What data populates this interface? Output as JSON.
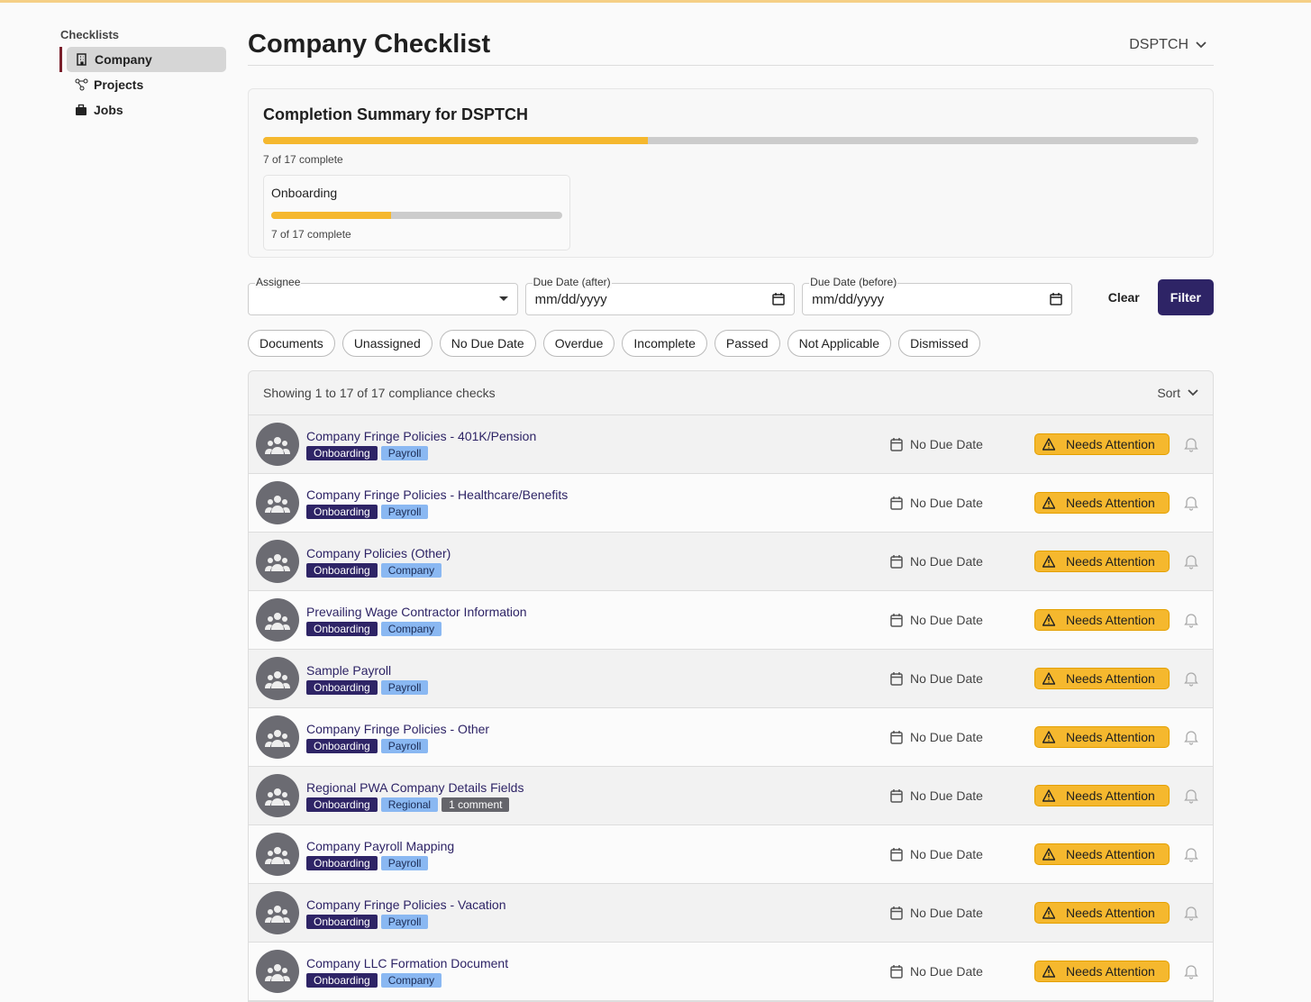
{
  "sidebar": {
    "heading": "Checklists",
    "items": [
      "Company",
      "Projects",
      "Jobs"
    ]
  },
  "header": {
    "title": "Company Checklist",
    "org": "DSPTCH"
  },
  "summary": {
    "title": "Completion Summary for DSPTCH",
    "completed": 7,
    "total": 17,
    "text": "7 of 17 complete",
    "groups": [
      {
        "name": "Onboarding",
        "completed": 7,
        "total": 17,
        "text": "7 of 17 complete"
      }
    ]
  },
  "filters": {
    "fields": [
      {
        "label": "Assignee",
        "placeholder": null
      },
      {
        "label": "Due Date (after)",
        "placeholder": "mm/dd/yyyy"
      },
      {
        "label": "Due Date (before)",
        "placeholder": "mm/dd/yyyy"
      }
    ],
    "clear": "Clear",
    "submit": "Filter",
    "chips": [
      "Documents",
      "Unassigned",
      "No Due Date",
      "Overdue",
      "Incomplete",
      "Passed",
      "Not Applicable",
      "Dismissed"
    ]
  },
  "list": {
    "showing": "Showing 1 to 17 of 17 compliance checks",
    "sort": "Sort",
    "rows": [
      {
        "title": "Company Fringe Policies - 401K/Pension",
        "tags": [
          "Onboarding",
          "Payroll"
        ],
        "due": "No Due Date",
        "status": "Needs Attention"
      },
      {
        "title": "Company Fringe Policies - Healthcare/Benefits",
        "tags": [
          "Onboarding",
          "Payroll"
        ],
        "due": "No Due Date",
        "status": "Needs Attention"
      },
      {
        "title": "Company Policies (Other)",
        "tags": [
          "Onboarding",
          "Company"
        ],
        "due": "No Due Date",
        "status": "Needs Attention"
      },
      {
        "title": "Prevailing Wage Contractor Information",
        "tags": [
          "Onboarding",
          "Company"
        ],
        "due": "No Due Date",
        "status": "Needs Attention"
      },
      {
        "title": "Sample Payroll",
        "tags": [
          "Onboarding",
          "Payroll"
        ],
        "due": "No Due Date",
        "status": "Needs Attention"
      },
      {
        "title": "Company Fringe Policies - Other",
        "tags": [
          "Onboarding",
          "Payroll"
        ],
        "due": "No Due Date",
        "status": "Needs Attention"
      },
      {
        "title": "Regional PWA Company Details Fields",
        "tags": [
          "Onboarding",
          "Regional",
          "1 comment"
        ],
        "due": "No Due Date",
        "status": "Needs Attention"
      },
      {
        "title": "Company Payroll Mapping",
        "tags": [
          "Onboarding",
          "Payroll"
        ],
        "due": "No Due Date",
        "status": "Needs Attention"
      },
      {
        "title": "Company Fringe Policies - Vacation",
        "tags": [
          "Onboarding",
          "Payroll"
        ],
        "due": "No Due Date",
        "status": "Needs Attention"
      },
      {
        "title": "Company LLC Formation Document",
        "tags": [
          "Onboarding",
          "Company"
        ],
        "due": "No Due Date",
        "status": "Needs Attention"
      }
    ]
  }
}
